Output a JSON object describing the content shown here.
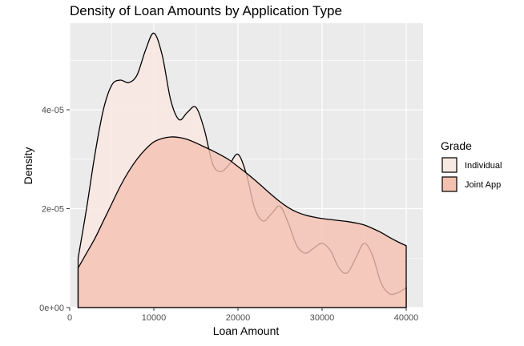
{
  "chart_data": {
    "type": "area",
    "title": "Density of Loan Amounts by Application Type",
    "xlabel": "Loan Amount",
    "ylabel": "Density",
    "xlim": [
      0,
      42000
    ],
    "ylim": [
      0,
      5.75e-05
    ],
    "x_ticks": [
      0,
      10000,
      20000,
      30000,
      40000
    ],
    "x_tick_labels": [
      "0",
      "10000",
      "20000",
      "30000",
      "40000"
    ],
    "y_ticks": [
      0,
      2e-05,
      4e-05
    ],
    "y_tick_labels": [
      "0e+00",
      "2e-05",
      "4e-05"
    ],
    "grid": true,
    "legend_title": "Grade",
    "legend_position": "right",
    "series": [
      {
        "name": "Individual",
        "fill": "#f8e8e2",
        "x": [
          1000,
          2000,
          3000,
          4000,
          5000,
          6000,
          7000,
          8000,
          9000,
          10000,
          11000,
          12000,
          13000,
          14000,
          15000,
          16000,
          17000,
          18000,
          19000,
          20000,
          21000,
          22000,
          23000,
          24000,
          25000,
          26000,
          27000,
          28000,
          29000,
          30000,
          31000,
          32000,
          33000,
          34000,
          35000,
          36000,
          37000,
          38000,
          39000,
          40000
        ],
        "values": [
          1e-05,
          2e-05,
          3.1e-05,
          4e-05,
          4.5e-05,
          4.6e-05,
          4.55e-05,
          4.7e-05,
          5.2e-05,
          5.55e-05,
          5.1e-05,
          4.2e-05,
          3.8e-05,
          3.95e-05,
          4.05e-05,
          3.6e-05,
          2.9e-05,
          2.75e-05,
          2.9e-05,
          3.1e-05,
          2.7e-05,
          2e-05,
          1.75e-05,
          1.9e-05,
          2.05e-05,
          1.7e-05,
          1.25e-05,
          1.1e-05,
          1.2e-05,
          1.3e-05,
          1.15e-05,
          8e-06,
          7e-06,
          1e-05,
          1.3e-05,
          1.05e-05,
          5e-06,
          2.8e-06,
          3e-06,
          4e-06
        ]
      },
      {
        "name": "Joint App",
        "fill": "#f4c0b0",
        "x": [
          1000,
          2000,
          3000,
          4000,
          5000,
          6000,
          7000,
          8000,
          9000,
          10000,
          11000,
          12000,
          13000,
          14000,
          15000,
          16000,
          17000,
          18000,
          19000,
          20000,
          21000,
          22000,
          23000,
          24000,
          25000,
          26000,
          27000,
          28000,
          29000,
          30000,
          31000,
          32000,
          33000,
          34000,
          35000,
          36000,
          37000,
          38000,
          39000,
          40000
        ],
        "values": [
          8e-06,
          1.1e-05,
          1.4e-05,
          1.75e-05,
          2.1e-05,
          2.45e-05,
          2.75e-05,
          3e-05,
          3.2e-05,
          3.35e-05,
          3.42e-05,
          3.45e-05,
          3.44e-05,
          3.4e-05,
          3.33e-05,
          3.25e-05,
          3.17e-05,
          3.08e-05,
          2.98e-05,
          2.85e-05,
          2.72e-05,
          2.58e-05,
          2.43e-05,
          2.28e-05,
          2.14e-05,
          2.02e-05,
          1.93e-05,
          1.87e-05,
          1.83e-05,
          1.8e-05,
          1.78e-05,
          1.76e-05,
          1.74e-05,
          1.71e-05,
          1.67e-05,
          1.6e-05,
          1.52e-05,
          1.42e-05,
          1.33e-05,
          1.25e-05
        ]
      }
    ]
  }
}
